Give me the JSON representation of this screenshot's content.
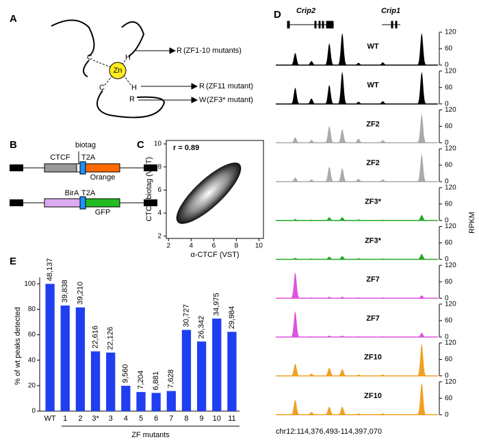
{
  "panels": {
    "A": {
      "label": "A",
      "zn": "Zn",
      "residues": [
        "C",
        "H",
        "C",
        "H",
        "R"
      ],
      "mutations": [
        {
          "to": "R",
          "note": "(ZF1-10 mutants)"
        },
        {
          "to": "R",
          "note": "(ZF11 mutant)"
        },
        {
          "to": "W",
          "note": "(ZF3* mutant)"
        }
      ]
    },
    "B": {
      "label": "B",
      "constructs": [
        {
          "parts": [
            "CTCF",
            "biotag",
            "T2A",
            "Orange"
          ]
        },
        {
          "parts": [
            "BirA",
            "T2A",
            "GFP"
          ]
        }
      ]
    },
    "C": {
      "label": "C",
      "annotation": "r = 0.89",
      "xlabel": "α-CTCF (VST)",
      "ylabel": "CTCF biotag (VST)",
      "xlim": [
        1.8,
        10.4
      ],
      "ylim": [
        1.8,
        10.3
      ],
      "xticks": [
        2,
        4,
        6,
        8,
        10
      ],
      "yticks": [
        2,
        4,
        6,
        8,
        10
      ]
    },
    "D": {
      "label": "D",
      "genes": [
        "Crip2",
        "Crip1"
      ],
      "ylabel": "RPKM",
      "region": "chr12:114,376,493-114,397,070",
      "xlim": [
        114376493,
        114397070
      ],
      "x": [
        114378962,
        114381020,
        114383283,
        114384930,
        114386987,
        114390073,
        114395011
      ],
      "ylim": [
        0,
        120
      ],
      "yticks": [
        0,
        60,
        120
      ],
      "tracks": [
        {
          "name": "WT",
          "color": "#000000",
          "values": [
            45,
            15,
            80,
            118,
            8,
            10,
            118
          ]
        },
        {
          "name": "WT",
          "color": "#000000",
          "values": [
            60,
            20,
            70,
            118,
            8,
            10,
            118
          ]
        },
        {
          "name": "ZF2",
          "color": "#aaaaaa",
          "values": [
            20,
            10,
            62,
            50,
            15,
            10,
            105
          ]
        },
        {
          "name": "ZF2",
          "color": "#aaaaaa",
          "values": [
            15,
            8,
            55,
            50,
            10,
            8,
            100
          ]
        },
        {
          "name": "ZF3*",
          "color": "#22aa22",
          "values": [
            5,
            3,
            12,
            12,
            4,
            3,
            20
          ]
        },
        {
          "name": "ZF3*",
          "color": "#22aa22",
          "values": [
            5,
            3,
            10,
            12,
            4,
            3,
            20
          ]
        },
        {
          "name": "ZF7",
          "color": "#dd55dd",
          "values": [
            95,
            3,
            5,
            5,
            3,
            3,
            10
          ]
        },
        {
          "name": "ZF7",
          "color": "#dd55dd",
          "values": [
            95,
            3,
            5,
            5,
            3,
            3,
            15
          ]
        },
        {
          "name": "ZF10",
          "color": "#f0a020",
          "values": [
            45,
            8,
            30,
            25,
            5,
            5,
            118
          ]
        },
        {
          "name": "ZF10",
          "color": "#f0a020",
          "values": [
            55,
            10,
            30,
            30,
            5,
            5,
            118
          ]
        }
      ]
    },
    "E": {
      "label": "E"
    }
  },
  "chart_data": {
    "type": "bar",
    "y_label": "% of wt peaks detected",
    "group_label": "ZF mutants",
    "categories": [
      "WT",
      "1",
      "2",
      "3*",
      "3",
      "4",
      "5",
      "6",
      "7",
      "8",
      "9",
      "10",
      "11"
    ],
    "values": [
      100,
      83,
      81.5,
      47,
      46,
      19.9,
      15,
      14.3,
      15.8,
      63.8,
      54.7,
      72.7,
      62.3
    ],
    "peak_counts": [
      "48,137",
      "39,838",
      "39,210",
      "22,616",
      "22,126",
      "9,560",
      "7,204",
      "6,881",
      "7,628",
      "30,727",
      "26,342",
      "34,975",
      "29,984"
    ],
    "color": "#1f3ff0",
    "ylim": [
      0,
      105
    ],
    "yticks": [
      0,
      20,
      40,
      60,
      80,
      100
    ]
  }
}
